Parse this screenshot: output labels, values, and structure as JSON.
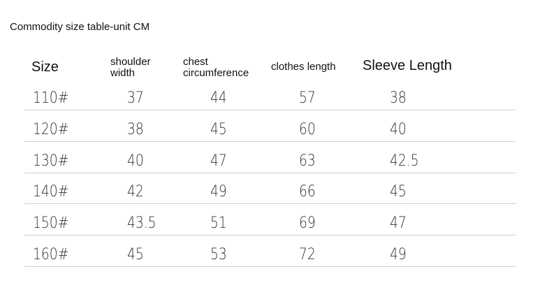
{
  "title": "Commodity size table-unit CM",
  "headers": {
    "size": "Size",
    "shoulder_1": "shoulder",
    "shoulder_2": "width",
    "chest_1": "chest",
    "chest_2": "circumference",
    "clothes": "clothes length",
    "sleeve": "Sleeve Length"
  },
  "rows": [
    [
      "110#",
      "37",
      "44",
      "57",
      "38"
    ],
    [
      "120#",
      "38",
      "45",
      "60",
      "40"
    ],
    [
      "130#",
      "40",
      "47",
      "63",
      "42.5"
    ],
    [
      "140#",
      "42",
      "49",
      "66",
      "45"
    ],
    [
      "150#",
      "43.5",
      "51",
      "69",
      "47"
    ],
    [
      "160#",
      "45",
      "53",
      "72",
      "49"
    ]
  ]
}
